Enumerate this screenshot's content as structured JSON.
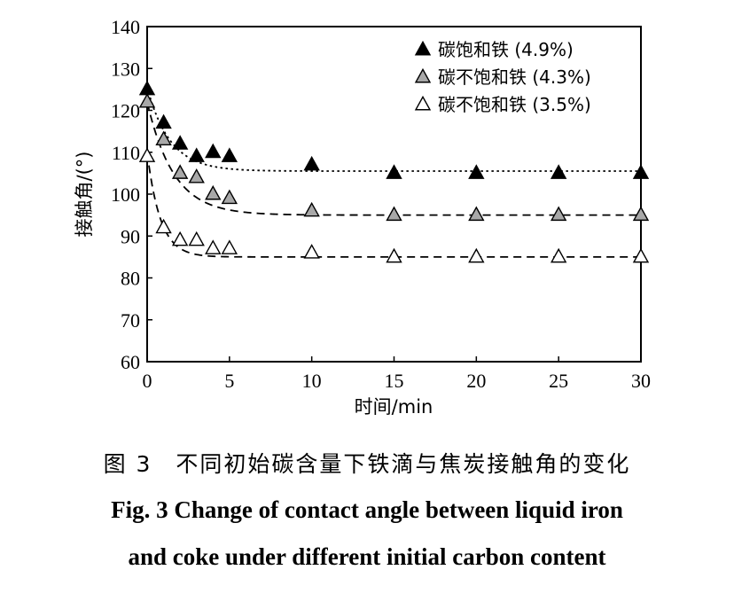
{
  "chart_data": {
    "type": "scatter",
    "xlabel": "时间/min",
    "ylabel": "接触角/(°)",
    "xlim": [
      0,
      30
    ],
    "ylim": [
      60,
      140
    ],
    "x_ticks": [
      0,
      5,
      10,
      15,
      20,
      25,
      30
    ],
    "x_tick_labels": [
      "0",
      "5",
      "10",
      "15",
      "20",
      "25",
      "30"
    ],
    "y_ticks": [
      60,
      70,
      80,
      90,
      100,
      110,
      120,
      130,
      140
    ],
    "y_tick_labels": [
      "60",
      "70",
      "80",
      "90",
      "100",
      "110",
      "120",
      "130",
      "140"
    ],
    "legend_position": "top-right",
    "series": [
      {
        "name": "碳饱和铁 (4.9%)",
        "marker": "filled-triangle",
        "color": "#000000",
        "line_style": "dotted",
        "x": [
          0,
          1,
          2,
          3,
          4,
          5,
          10,
          15,
          20,
          25,
          30
        ],
        "y": [
          125,
          117,
          112,
          109,
          110,
          109,
          107,
          105,
          105,
          105,
          105
        ],
        "fit": {
          "a": 105.5,
          "b": 20,
          "k": 0.72
        }
      },
      {
        "name": "碳不饱和铁 (4.3%)",
        "marker": "gray-triangle",
        "color": "#a8a8a8",
        "line_style": "dashed",
        "x": [
          0,
          1,
          2,
          3,
          4,
          5,
          10,
          15,
          20,
          25,
          30
        ],
        "y": [
          122,
          113,
          105,
          104,
          100,
          99,
          96,
          95,
          95,
          95,
          95
        ],
        "fit": {
          "a": 95,
          "b": 27,
          "k": 0.62
        }
      },
      {
        "name": "碳不饱和铁 (3.5%)",
        "marker": "open-triangle",
        "color": "#ffffff",
        "line_style": "dashed",
        "x": [
          0,
          1,
          2,
          3,
          4,
          5,
          10,
          15,
          20,
          25,
          30
        ],
        "y": [
          109,
          92,
          89,
          89,
          87,
          87,
          86,
          85,
          85,
          85,
          85
        ],
        "fit": {
          "a": 85,
          "b": 25,
          "k": 1.25
        }
      }
    ]
  },
  "caption": {
    "cn": "图 3　不同初始碳含量下铁滴与焦炭接触角的变化",
    "en_line1": "Fig. 3    Change of contact angle between liquid iron",
    "en_line2": "and coke under different initial carbon content"
  }
}
